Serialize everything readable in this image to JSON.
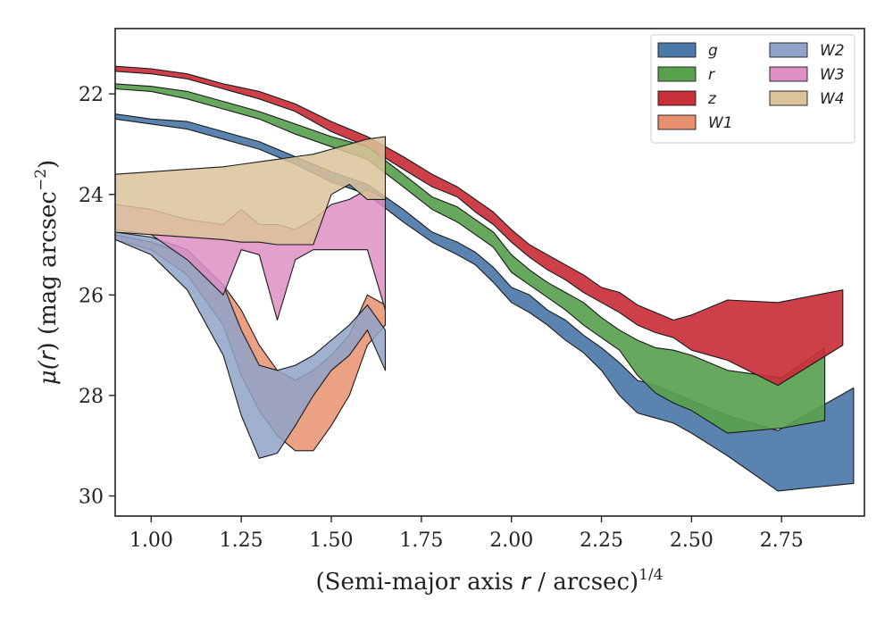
{
  "chart_data": {
    "type": "area",
    "xlabel": "(Semi-major axis r / arcsec)^1/4",
    "xlabel_parts": [
      "(Semi-major axis ",
      "r",
      " / arcsec)",
      "1/4"
    ],
    "ylabel": "μ(r) (mag arcsec^−2)",
    "ylabel_parts": [
      "μ(",
      "r",
      ") (mag arcsec",
      "−2",
      ")"
    ],
    "xlim": [
      0.9,
      2.98
    ],
    "ylim": [
      30.4,
      20.7
    ],
    "y_inverted": true,
    "xticks": [
      1.0,
      1.25,
      1.5,
      1.75,
      2.0,
      2.25,
      2.5,
      2.75
    ],
    "xtick_labels": [
      "1.00",
      "1.25",
      "1.50",
      "1.75",
      "2.00",
      "2.25",
      "2.50",
      "2.75"
    ],
    "yticks": [
      22,
      24,
      26,
      28,
      30
    ],
    "ytick_labels": [
      "22",
      "24",
      "26",
      "28",
      "30"
    ],
    "grid": false,
    "legend_position": "top-right",
    "legend_columns": 2,
    "series": [
      {
        "name": "g",
        "color": "#4c78a8",
        "x": [
          0.9,
          1.0,
          1.1,
          1.2,
          1.3,
          1.4,
          1.5,
          1.6,
          1.7,
          1.78,
          1.85,
          1.9,
          1.95,
          2.0,
          2.05,
          2.1,
          2.15,
          2.2,
          2.25,
          2.3,
          2.35,
          2.4,
          2.45,
          2.5,
          2.6,
          2.74,
          2.95
        ],
        "lower": [
          22.4,
          22.5,
          22.55,
          22.75,
          22.95,
          23.25,
          23.55,
          23.8,
          24.3,
          24.75,
          24.95,
          25.15,
          25.45,
          25.85,
          26.0,
          26.3,
          26.5,
          26.8,
          27.05,
          27.35,
          27.7,
          27.8,
          27.95,
          28.1,
          28.4,
          28.7,
          27.85
        ],
        "upper": [
          22.5,
          22.6,
          22.7,
          22.9,
          23.1,
          23.4,
          23.75,
          24.0,
          24.55,
          24.95,
          25.2,
          25.4,
          25.75,
          26.15,
          26.35,
          26.6,
          26.9,
          27.15,
          27.5,
          28.0,
          28.35,
          28.45,
          28.55,
          28.75,
          29.2,
          29.9,
          29.75
        ]
      },
      {
        "name": "r",
        "color": "#59a14f",
        "x": [
          0.9,
          1.0,
          1.1,
          1.2,
          1.3,
          1.4,
          1.5,
          1.6,
          1.7,
          1.78,
          1.85,
          1.9,
          1.95,
          2.0,
          2.05,
          2.1,
          2.15,
          2.2,
          2.25,
          2.3,
          2.35,
          2.4,
          2.45,
          2.5,
          2.6,
          2.75,
          2.87
        ],
        "lower": [
          21.8,
          21.85,
          21.95,
          22.15,
          22.35,
          22.6,
          22.85,
          23.05,
          23.6,
          24.05,
          24.25,
          24.5,
          24.75,
          25.2,
          25.5,
          25.75,
          25.95,
          26.15,
          26.45,
          26.7,
          26.9,
          27.05,
          27.1,
          27.2,
          27.5,
          27.65,
          27.05
        ],
        "upper": [
          21.9,
          21.95,
          22.1,
          22.3,
          22.5,
          22.8,
          23.05,
          23.3,
          23.85,
          24.3,
          24.55,
          24.8,
          25.05,
          25.55,
          25.8,
          26.05,
          26.3,
          26.6,
          26.85,
          27.1,
          27.6,
          27.95,
          28.15,
          28.3,
          28.75,
          28.65,
          28.5
        ]
      },
      {
        "name": "z",
        "color": "#c9303b",
        "x": [
          0.9,
          1.0,
          1.1,
          1.2,
          1.3,
          1.4,
          1.5,
          1.6,
          1.7,
          1.78,
          1.85,
          1.9,
          1.95,
          2.0,
          2.05,
          2.1,
          2.15,
          2.2,
          2.25,
          2.3,
          2.35,
          2.4,
          2.45,
          2.5,
          2.6,
          2.74,
          2.92
        ],
        "lower": [
          21.45,
          21.5,
          21.6,
          21.8,
          21.95,
          22.2,
          22.55,
          22.85,
          23.25,
          23.6,
          23.85,
          24.1,
          24.35,
          24.7,
          25.0,
          25.2,
          25.4,
          25.6,
          25.85,
          25.95,
          26.2,
          26.35,
          26.5,
          26.4,
          26.1,
          26.15,
          25.9
        ],
        "upper": [
          21.55,
          21.6,
          21.7,
          21.9,
          22.1,
          22.35,
          22.75,
          23.05,
          23.5,
          23.85,
          24.05,
          24.35,
          24.6,
          24.95,
          25.25,
          25.5,
          25.7,
          25.95,
          26.15,
          26.35,
          26.6,
          26.75,
          26.85,
          27.1,
          27.3,
          27.8,
          27.0
        ]
      },
      {
        "name": "W1",
        "color": "#e8906f",
        "x": [
          0.9,
          1.0,
          1.1,
          1.2,
          1.25,
          1.3,
          1.35,
          1.4,
          1.45,
          1.5,
          1.55,
          1.6,
          1.65
        ],
        "lower": [
          24.8,
          24.95,
          25.2,
          25.8,
          26.3,
          27.0,
          27.5,
          27.7,
          27.5,
          27.2,
          26.8,
          26.0,
          26.2
        ],
        "upper": [
          24.9,
          25.1,
          25.6,
          26.6,
          27.6,
          28.3,
          28.8,
          29.1,
          29.1,
          28.6,
          28.0,
          27.0,
          26.6
        ]
      },
      {
        "name": "W2",
        "color": "#8fa3c8",
        "x": [
          0.9,
          1.0,
          1.1,
          1.2,
          1.25,
          1.3,
          1.35,
          1.4,
          1.45,
          1.5,
          1.55,
          1.6,
          1.65
        ],
        "lower": [
          24.75,
          24.85,
          25.1,
          25.8,
          26.7,
          27.4,
          27.5,
          27.4,
          27.2,
          26.9,
          26.6,
          26.2,
          26.7
        ],
        "upper": [
          24.9,
          25.2,
          25.9,
          27.2,
          28.4,
          29.25,
          29.15,
          28.6,
          28.0,
          27.5,
          27.2,
          26.7,
          27.5
        ]
      },
      {
        "name": "W3",
        "color": "#de8fc3",
        "x": [
          0.9,
          1.0,
          1.1,
          1.2,
          1.25,
          1.3,
          1.35,
          1.4,
          1.45,
          1.5,
          1.55,
          1.6,
          1.65
        ],
        "lower": [
          24.2,
          24.3,
          24.5,
          24.6,
          24.3,
          24.6,
          24.6,
          24.7,
          24.5,
          24.2,
          24.1,
          23.9,
          24.1
        ],
        "upper": [
          24.7,
          24.8,
          25.3,
          26.0,
          25.1,
          25.2,
          26.5,
          25.3,
          25.1,
          25.1,
          25.1,
          25.1,
          26.3
        ]
      },
      {
        "name": "W4",
        "color": "#dcc39a",
        "x": [
          0.9,
          1.0,
          1.1,
          1.2,
          1.25,
          1.3,
          1.35,
          1.4,
          1.45,
          1.5,
          1.55,
          1.6,
          1.65
        ],
        "lower": [
          23.6,
          23.55,
          23.5,
          23.45,
          23.4,
          23.35,
          23.3,
          23.25,
          23.2,
          23.1,
          23.0,
          22.9,
          22.85
        ],
        "upper": [
          24.75,
          24.8,
          24.85,
          24.9,
          24.95,
          24.95,
          25.0,
          25.0,
          25.0,
          24.0,
          23.8,
          24.1,
          24.1
        ]
      }
    ]
  }
}
